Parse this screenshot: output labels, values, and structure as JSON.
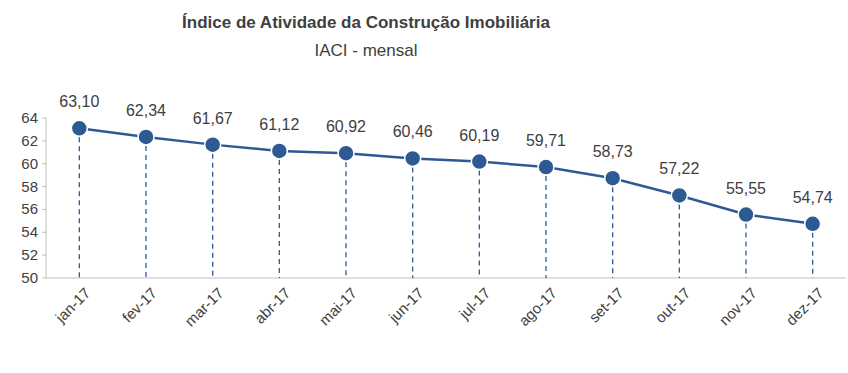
{
  "chart_data": {
    "type": "line",
    "title": "Índice de Atividade da Construção Imobiliária",
    "subtitle": "IACI - mensal",
    "categories": [
      "jan-17",
      "fev-17",
      "mar-17",
      "abr-17",
      "mai-17",
      "jun-17",
      "jul-17",
      "ago-17",
      "set-17",
      "out-17",
      "nov-17",
      "dez-17"
    ],
    "values": [
      63.1,
      62.34,
      61.67,
      61.12,
      60.92,
      60.46,
      60.19,
      59.71,
      58.73,
      57.22,
      55.55,
      54.74
    ],
    "value_labels": [
      "63,10",
      "62,34",
      "61,67",
      "61,12",
      "60,92",
      "60,46",
      "60,19",
      "59,71",
      "58,73",
      "57,22",
      "55,55",
      "54,74"
    ],
    "color": "#2e5a94",
    "marker": "circle",
    "data_labels": true,
    "grid": false,
    "ylim": [
      50,
      64
    ],
    "yticks": [
      50,
      52,
      54,
      56,
      58,
      60,
      62,
      64
    ]
  }
}
